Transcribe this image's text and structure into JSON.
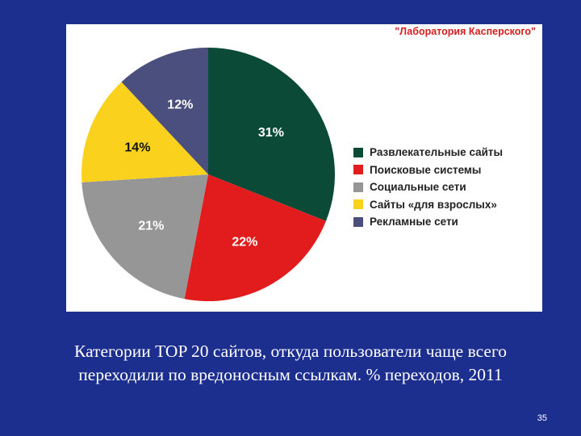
{
  "source_label": "\"Лаборатория Касперского\"",
  "caption": {
    "line1": "Категории TOP 20 сайтов, откуда пользователи чаще всего",
    "line2": "переходили по вредоносным ссылкам. % переходов, 2011"
  },
  "page_number": "35",
  "chart_data": {
    "type": "pie",
    "categories": [
      "Развлекательные сайты",
      "Поисковые системы",
      "Социальные сети",
      "Сайты «для взрослых»",
      "Рекламные сети"
    ],
    "values": [
      31,
      22,
      21,
      14,
      12
    ],
    "labels": [
      "31%",
      "22%",
      "21%",
      "14%",
      "12%"
    ],
    "colors": [
      "#0c4a38",
      "#e21c1c",
      "#969696",
      "#fad21e",
      "#4b4f7d"
    ],
    "label_colors": [
      "#ffffff",
      "#ffffff",
      "#ffffff",
      "#111111",
      "#ffffff"
    ],
    "legend_position": "right"
  }
}
